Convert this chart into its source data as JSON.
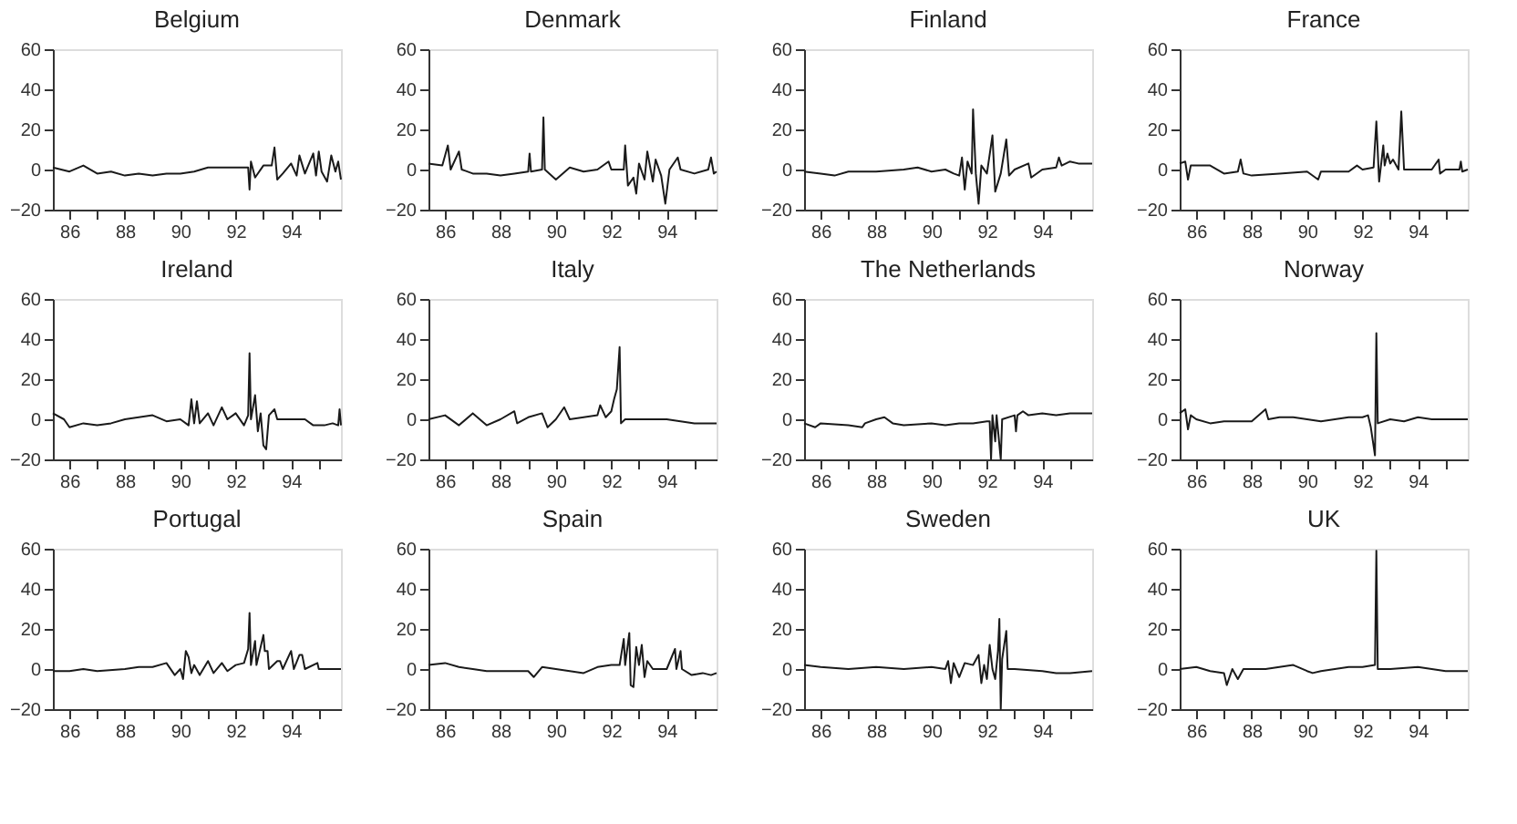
{
  "chart_data": [
    {
      "type": "line",
      "title": "Belgium",
      "xlim": [
        85.4,
        95.8
      ],
      "ylim": [
        -20,
        60
      ],
      "xticks": [
        86,
        {
          "value": 87,
          "label": null
        },
        88,
        {
          "value": 89,
          "label": null
        },
        90,
        {
          "value": 91,
          "label": null
        },
        92,
        {
          "value": 93,
          "label": null
        },
        94,
        {
          "value": 95,
          "label": null
        }
      ],
      "yticks": [
        -20,
        0,
        20,
        40,
        60
      ],
      "series": [
        {
          "color": "#1a1a1a",
          "x": [
            85.4,
            86,
            86.5,
            87,
            87.5,
            88,
            88.5,
            89,
            89.5,
            90,
            90.5,
            91,
            92,
            92.45,
            92.5,
            92.55,
            92.7,
            93,
            93.3,
            93.4,
            93.5,
            93.7,
            94,
            94.2,
            94.3,
            94.5,
            94.8,
            94.9,
            95,
            95.1,
            95.3,
            95.45,
            95.6,
            95.7,
            95.8
          ],
          "values": [
            1,
            -1,
            2,
            -2,
            -1,
            -3,
            -2,
            -3,
            -2,
            -2,
            -1,
            1,
            1,
            1,
            -10,
            4,
            -4,
            2,
            2,
            11,
            -5,
            -2,
            3,
            -3,
            7,
            -2,
            8,
            -3,
            9,
            -1,
            -6,
            7,
            -1,
            4,
            -5
          ]
        }
      ]
    },
    {
      "type": "line",
      "title": "Denmark",
      "xlim": [
        85.4,
        95.8
      ],
      "ylim": [
        -20,
        60
      ],
      "xticks": [
        86,
        {
          "value": 87,
          "label": null
        },
        88,
        {
          "value": 89,
          "label": null
        },
        90,
        {
          "value": 91,
          "label": null
        },
        92,
        {
          "value": 93,
          "label": null
        },
        94,
        {
          "value": 95,
          "label": null
        }
      ],
      "yticks": [
        -20,
        0,
        20,
        40,
        60
      ],
      "series": [
        {
          "color": "#1a1a1a",
          "x": [
            85.4,
            85.9,
            86.1,
            86.2,
            86.5,
            86.6,
            87,
            87.5,
            88,
            88.5,
            89,
            89.05,
            89.1,
            89.5,
            89.55,
            89.6,
            90,
            90.5,
            91,
            91.5,
            91.9,
            92,
            92.45,
            92.5,
            92.6,
            92.8,
            92.9,
            93,
            93.2,
            93.3,
            93.5,
            93.6,
            93.8,
            93.95,
            94.1,
            94.4,
            94.5,
            95,
            95.5,
            95.6,
            95.7,
            95.8
          ],
          "values": [
            3,
            2,
            12,
            0,
            9,
            0,
            -2,
            -2,
            -3,
            -2,
            -1,
            8,
            -1,
            0,
            26,
            0,
            -5,
            1,
            -1,
            0,
            4,
            0,
            0,
            12,
            -8,
            -4,
            -12,
            3,
            -5,
            9,
            -6,
            5,
            -3,
            -17,
            0,
            6,
            0,
            -2,
            0,
            6,
            -2,
            -1
          ]
        }
      ]
    },
    {
      "type": "line",
      "title": "Finland",
      "xlim": [
        85.4,
        95.8
      ],
      "ylim": [
        -20,
        60
      ],
      "xticks": [
        86,
        {
          "value": 87,
          "label": null
        },
        88,
        {
          "value": 89,
          "label": null
        },
        90,
        {
          "value": 91,
          "label": null
        },
        92,
        {
          "value": 93,
          "label": null
        },
        94,
        {
          "value": 95,
          "label": null
        }
      ],
      "yticks": [
        -20,
        0,
        20,
        40,
        60
      ],
      "series": [
        {
          "color": "#1a1a1a",
          "x": [
            85.4,
            86,
            86.5,
            87,
            88,
            89,
            89.5,
            90,
            90.5,
            90.8,
            91,
            91.1,
            91.2,
            91.3,
            91.45,
            91.5,
            91.6,
            91.7,
            91.8,
            92,
            92.2,
            92.3,
            92.5,
            92.7,
            92.8,
            93,
            93.5,
            93.6,
            94,
            94.5,
            94.6,
            94.7,
            95,
            95.3,
            95.5,
            95.8
          ],
          "values": [
            -1,
            -2,
            -3,
            -1,
            -1,
            0,
            1,
            -1,
            0,
            -2,
            -3,
            6,
            -10,
            4,
            -2,
            30,
            -2,
            -17,
            2,
            -2,
            17,
            -11,
            -2,
            15,
            -3,
            0,
            3,
            -4,
            0,
            1,
            6,
            2,
            4,
            3,
            3,
            3
          ]
        }
      ]
    },
    {
      "type": "line",
      "title": "France",
      "xlim": [
        85.4,
        95.8
      ],
      "ylim": [
        -20,
        60
      ],
      "xticks": [
        86,
        {
          "value": 87,
          "label": null
        },
        88,
        {
          "value": 89,
          "label": null
        },
        90,
        {
          "value": 91,
          "label": null
        },
        92,
        {
          "value": 93,
          "label": null
        },
        94,
        {
          "value": 95,
          "label": null
        }
      ],
      "yticks": [
        -20,
        0,
        20,
        40,
        60
      ],
      "series": [
        {
          "color": "#1a1a1a",
          "x": [
            85.4,
            85.6,
            85.7,
            85.8,
            86.5,
            87,
            87.5,
            87.6,
            87.7,
            88,
            89,
            90,
            90.4,
            90.5,
            91,
            91.5,
            91.8,
            92,
            92.4,
            92.5,
            92.6,
            92.75,
            92.8,
            92.9,
            93,
            93.1,
            93.3,
            93.4,
            93.5,
            94,
            94.5,
            94.75,
            94.8,
            95,
            95.5,
            95.55,
            95.6,
            95.8
          ],
          "values": [
            3,
            4,
            -5,
            2,
            2,
            -2,
            -1,
            5,
            -2,
            -3,
            -2,
            -1,
            -5,
            -1,
            -1,
            -1,
            2,
            0,
            1,
            24,
            -6,
            12,
            2,
            8,
            3,
            5,
            0,
            29,
            0,
            0,
            0,
            5,
            -2,
            0,
            0,
            4,
            -1,
            0
          ]
        }
      ]
    },
    {
      "type": "line",
      "title": "Ireland",
      "xlim": [
        85.4,
        95.8
      ],
      "ylim": [
        -20,
        60
      ],
      "xticks": [
        86,
        {
          "value": 87,
          "label": null
        },
        88,
        {
          "value": 89,
          "label": null
        },
        90,
        {
          "value": 91,
          "label": null
        },
        92,
        {
          "value": 93,
          "label": null
        },
        94,
        {
          "value": 95,
          "label": null
        }
      ],
      "yticks": [
        -20,
        0,
        20,
        40,
        60
      ],
      "series": [
        {
          "color": "#1a1a1a",
          "x": [
            85.4,
            85.8,
            86,
            86.5,
            87,
            87.5,
            88,
            88.5,
            89,
            89.5,
            90,
            90.3,
            90.4,
            90.5,
            90.6,
            90.7,
            91,
            91.2,
            91.5,
            91.7,
            92,
            92.3,
            92.45,
            92.5,
            92.55,
            92.7,
            92.8,
            92.9,
            93,
            93.1,
            93.2,
            93.4,
            93.5,
            94,
            94.5,
            94.8,
            95.2,
            95.5,
            95.7,
            95.75,
            95.8
          ],
          "values": [
            3,
            0,
            -4,
            -2,
            -3,
            -2,
            0,
            1,
            2,
            -1,
            0,
            -3,
            10,
            -2,
            9,
            -2,
            3,
            -3,
            6,
            0,
            3,
            -3,
            2,
            33,
            0,
            12,
            -6,
            3,
            -13,
            -15,
            2,
            5,
            0,
            0,
            0,
            -3,
            -3,
            -2,
            -3,
            5,
            -3
          ]
        }
      ]
    },
    {
      "type": "line",
      "title": "Italy",
      "xlim": [
        85.4,
        95.8
      ],
      "ylim": [
        -20,
        60
      ],
      "xticks": [
        86,
        {
          "value": 87,
          "label": null
        },
        88,
        {
          "value": 89,
          "label": null
        },
        90,
        {
          "value": 91,
          "label": null
        },
        92,
        {
          "value": 93,
          "label": null
        },
        94,
        {
          "value": 95,
          "label": null
        }
      ],
      "yticks": [
        -20,
        0,
        20,
        40,
        60
      ],
      "series": [
        {
          "color": "#1a1a1a",
          "x": [
            85.4,
            86,
            86.5,
            87,
            87.5,
            88,
            88.5,
            88.6,
            89,
            89.5,
            89.7,
            90,
            90.3,
            90.5,
            91,
            91.5,
            91.6,
            91.8,
            92,
            92.1,
            92.2,
            92.3,
            92.35,
            92.5,
            93,
            93.5,
            94,
            94.5,
            95,
            95.8
          ],
          "values": [
            0,
            2,
            -3,
            3,
            -3,
            0,
            4,
            -2,
            1,
            3,
            -4,
            0,
            6,
            0,
            1,
            2,
            7,
            1,
            4,
            10,
            15,
            36,
            -2,
            0,
            0,
            0,
            0,
            -1,
            -2,
            -2
          ]
        }
      ]
    },
    {
      "type": "line",
      "title": "The Netherlands",
      "xlim": [
        85.4,
        95.8
      ],
      "ylim": [
        -20,
        60
      ],
      "xticks": [
        86,
        {
          "value": 87,
          "label": null
        },
        88,
        {
          "value": 89,
          "label": null
        },
        90,
        {
          "value": 91,
          "label": null
        },
        92,
        {
          "value": 93,
          "label": null
        },
        94,
        {
          "value": 95,
          "label": null
        }
      ],
      "yticks": [
        -20,
        0,
        20,
        40,
        60
      ],
      "series": [
        {
          "color": "#1a1a1a",
          "x": [
            85.4,
            85.8,
            86,
            87,
            87.5,
            87.6,
            88,
            88.3,
            88.6,
            89,
            90,
            90.5,
            91,
            91.5,
            92,
            92.1,
            92.15,
            92.2,
            92.3,
            92.35,
            92.5,
            92.55,
            93,
            93.05,
            93.1,
            93.3,
            93.5,
            94,
            94.5,
            95,
            95.8
          ],
          "values": [
            -2,
            -4,
            -2,
            -3,
            -4,
            -2,
            0,
            1,
            -2,
            -3,
            -2,
            -3,
            -2,
            -2,
            -1,
            -1,
            -20,
            2,
            -11,
            2,
            -20,
            0,
            2,
            -6,
            2,
            4,
            2,
            3,
            2,
            3,
            3
          ]
        }
      ]
    },
    {
      "type": "line",
      "title": "Norway",
      "xlim": [
        85.4,
        95.8
      ],
      "ylim": [
        -20,
        60
      ],
      "xticks": [
        86,
        {
          "value": 87,
          "label": null
        },
        88,
        {
          "value": 89,
          "label": null
        },
        90,
        {
          "value": 91,
          "label": null
        },
        92,
        {
          "value": 93,
          "label": null
        },
        94,
        {
          "value": 95,
          "label": null
        }
      ],
      "yticks": [
        -20,
        0,
        20,
        40,
        60
      ],
      "series": [
        {
          "color": "#1a1a1a",
          "x": [
            85.4,
            85.6,
            85.7,
            85.8,
            86,
            86.5,
            87,
            87.5,
            88,
            88.5,
            88.6,
            89,
            89.5,
            90,
            90.5,
            91,
            91.5,
            92,
            92.2,
            92.3,
            92.45,
            92.5,
            92.55,
            93,
            93.5,
            94,
            94.5,
            95,
            95.8
          ],
          "values": [
            3,
            5,
            -5,
            2,
            0,
            -2,
            -1,
            -1,
            -1,
            5,
            0,
            1,
            1,
            0,
            -1,
            0,
            1,
            1,
            2,
            -4,
            -18,
            43,
            -2,
            0,
            -1,
            1,
            0,
            0,
            0
          ]
        }
      ]
    },
    {
      "type": "line",
      "title": "Portugal",
      "xlim": [
        85.4,
        95.8
      ],
      "ylim": [
        -20,
        60
      ],
      "xticks": [
        86,
        {
          "value": 87,
          "label": null
        },
        88,
        {
          "value": 89,
          "label": null
        },
        90,
        {
          "value": 91,
          "label": null
        },
        92,
        {
          "value": 93,
          "label": null
        },
        94,
        {
          "value": 95,
          "label": null
        }
      ],
      "yticks": [
        -20,
        0,
        20,
        40,
        60
      ],
      "series": [
        {
          "color": "#1a1a1a",
          "x": [
            85.4,
            86,
            86.5,
            87,
            88,
            88.5,
            89,
            89.5,
            89.8,
            90,
            90.1,
            90.2,
            90.3,
            90.4,
            90.5,
            90.7,
            91,
            91.2,
            91.5,
            91.7,
            92,
            92.3,
            92.45,
            92.5,
            92.55,
            92.7,
            92.75,
            93,
            93.05,
            93.15,
            93.2,
            93.5,
            93.6,
            93.7,
            94,
            94.1,
            94.3,
            94.4,
            94.5,
            94.95,
            95,
            95.8
          ],
          "values": [
            -1,
            -1,
            0,
            -1,
            0,
            1,
            1,
            3,
            -3,
            0,
            -5,
            9,
            6,
            -2,
            2,
            -3,
            4,
            -2,
            3,
            -1,
            2,
            3,
            10,
            28,
            2,
            14,
            2,
            17,
            9,
            9,
            0,
            4,
            4,
            0,
            9,
            0,
            7,
            7,
            0,
            3,
            0,
            0
          ]
        }
      ]
    },
    {
      "type": "line",
      "title": "Spain",
      "xlim": [
        85.4,
        95.8
      ],
      "ylim": [
        -20,
        60
      ],
      "xticks": [
        86,
        {
          "value": 87,
          "label": null
        },
        88,
        {
          "value": 89,
          "label": null
        },
        90,
        {
          "value": 91,
          "label": null
        },
        92,
        {
          "value": 93,
          "label": null
        },
        94,
        {
          "value": 95,
          "label": null
        }
      ],
      "yticks": [
        -20,
        0,
        20,
        40,
        60
      ],
      "series": [
        {
          "color": "#1a1a1a",
          "x": [
            85.4,
            86,
            86.5,
            87,
            87.5,
            88,
            89,
            89.2,
            89.5,
            90,
            90.5,
            91,
            91.5,
            92,
            92.3,
            92.45,
            92.5,
            92.65,
            92.7,
            92.8,
            92.9,
            93,
            93.1,
            93.2,
            93.3,
            93.5,
            94,
            94.3,
            94.35,
            94.5,
            94.55,
            94.9,
            95.3,
            95.6,
            95.8
          ],
          "values": [
            2,
            3,
            1,
            0,
            -1,
            -1,
            -1,
            -4,
            1,
            0,
            -1,
            -2,
            1,
            2,
            2,
            15,
            2,
            18,
            -8,
            -9,
            11,
            2,
            12,
            -4,
            4,
            0,
            0,
            10,
            0,
            9,
            0,
            -3,
            -2,
            -3,
            -2
          ]
        }
      ]
    },
    {
      "type": "line",
      "title": "Sweden",
      "xlim": [
        85.4,
        95.8
      ],
      "ylim": [
        -20,
        60
      ],
      "xticks": [
        86,
        {
          "value": 87,
          "label": null
        },
        88,
        {
          "value": 89,
          "label": null
        },
        90,
        {
          "value": 91,
          "label": null
        },
        92,
        {
          "value": 93,
          "label": null
        },
        94,
        {
          "value": 95,
          "label": null
        }
      ],
      "yticks": [
        -20,
        0,
        20,
        40,
        60
      ],
      "series": [
        {
          "color": "#1a1a1a",
          "x": [
            85.4,
            86,
            87,
            88,
            89,
            90,
            90.5,
            90.6,
            90.7,
            90.8,
            91,
            91.2,
            91.5,
            91.7,
            91.8,
            91.9,
            92,
            92.1,
            92.2,
            92.3,
            92.4,
            92.45,
            92.5,
            92.55,
            92.7,
            92.75,
            93,
            94,
            94.5,
            95,
            95.8
          ],
          "values": [
            2,
            1,
            0,
            1,
            0,
            1,
            0,
            4,
            -7,
            3,
            -4,
            3,
            2,
            7,
            -7,
            2,
            -5,
            12,
            0,
            -5,
            9,
            25,
            -20,
            5,
            19,
            0,
            0,
            -1,
            -2,
            -2,
            -1
          ]
        }
      ]
    },
    {
      "type": "line",
      "title": "UK",
      "xlim": [
        85.4,
        95.8
      ],
      "ylim": [
        -20,
        60
      ],
      "xticks": [
        86,
        {
          "value": 87,
          "label": null
        },
        88,
        {
          "value": 89,
          "label": null
        },
        90,
        {
          "value": 91,
          "label": null
        },
        92,
        {
          "value": 93,
          "label": null
        },
        94,
        {
          "value": 95,
          "label": null
        }
      ],
      "yticks": [
        -20,
        0,
        20,
        40,
        60
      ],
      "series": [
        {
          "color": "#1a1a1a",
          "x": [
            85.4,
            86,
            86.5,
            87,
            87.1,
            87.3,
            87.5,
            87.7,
            88,
            88.5,
            89,
            89.5,
            90,
            90.2,
            90.5,
            91,
            91.5,
            92,
            92.45,
            92.5,
            92.55,
            93,
            94,
            95,
            95.8
          ],
          "values": [
            0,
            1,
            -1,
            -2,
            -8,
            0,
            -5,
            0,
            0,
            0,
            1,
            2,
            -1,
            -2,
            -1,
            0,
            1,
            1,
            2,
            59,
            0,
            0,
            1,
            -1,
            -1
          ]
        }
      ]
    }
  ]
}
